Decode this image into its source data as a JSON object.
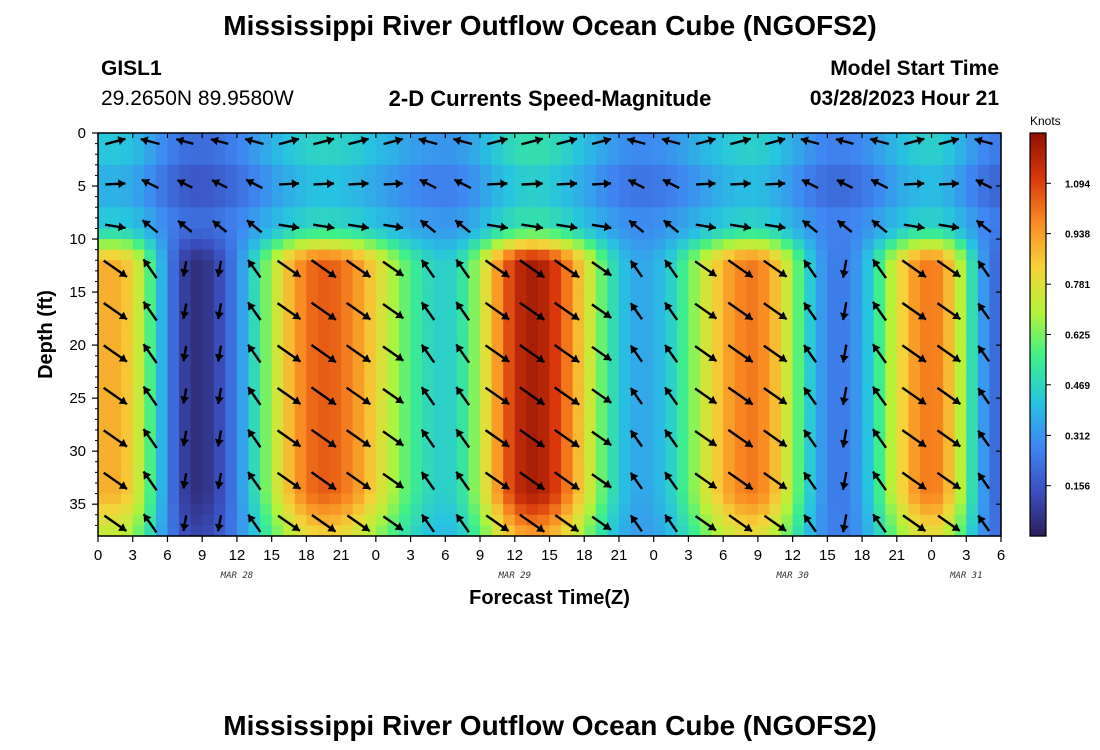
{
  "page": {
    "title": "Mississippi River Outflow Ocean Cube (NGOFS2)",
    "footer_title": "Mississippi River Outflow Ocean Cube (NGOFS2)",
    "station": "GISL1",
    "location": "29.2650N  89.9580W",
    "subtitle": "2-D Currents Speed-Magnitude",
    "model_start_label": "Model Start Time",
    "model_start_value": "03/28/2023 Hour 21"
  },
  "chart_data": {
    "type": "heatmap",
    "title": "2-D Currents Speed-Magnitude",
    "xlabel": "Forecast Time(Z)",
    "ylabel": "Depth (ft)",
    "colorbar_label": "Knots",
    "x_ticks": [
      "0",
      "3",
      "6",
      "9",
      "12",
      "15",
      "18",
      "21",
      "0",
      "3",
      "6",
      "9",
      "12",
      "15",
      "18",
      "21",
      "0",
      "3",
      "6",
      "9",
      "12",
      "15",
      "18",
      "21",
      "0",
      "3",
      "6"
    ],
    "x_hours": [
      0,
      3,
      6,
      9,
      12,
      15,
      18,
      21,
      24,
      27,
      30,
      33,
      36,
      39,
      42,
      45,
      48,
      51,
      54,
      57,
      60,
      63,
      66,
      69,
      72,
      75,
      78
    ],
    "date_labels": [
      {
        "text": "MAR 28",
        "hour": 12
      },
      {
        "text": "MAR 29",
        "hour": 36
      },
      {
        "text": "MAR 30",
        "hour": 60
      },
      {
        "text": "MAR 31",
        "hour": 75
      }
    ],
    "y_ticks": [
      0,
      5,
      10,
      15,
      20,
      25,
      30,
      35
    ],
    "ylim": [
      0,
      38
    ],
    "xlim": [
      0,
      78
    ],
    "colorbar_ticks": [
      "1.094",
      "0.938",
      "0.781",
      "0.625",
      "0.469",
      "0.312",
      "0.156"
    ],
    "colorbar_values": [
      1.094,
      0.938,
      0.781,
      0.625,
      0.469,
      0.312,
      0.156
    ],
    "colorbar_range": [
      0.0,
      1.25
    ],
    "colorscale": [
      "#2b1f5a",
      "#3b4fc0",
      "#3f86f2",
      "#27c4e0",
      "#3ef08a",
      "#b4f33a",
      "#f5d33a",
      "#f98b22",
      "#d8380c",
      "#8f1004"
    ],
    "speed_peaks": [
      {
        "hour": 1.5,
        "speed": 0.9
      },
      {
        "hour": 8.5,
        "speed": 0.05
      },
      {
        "hour": 19.5,
        "speed": 1.05
      },
      {
        "hour": 30.0,
        "speed": 0.45
      },
      {
        "hour": 37.5,
        "speed": 1.2
      },
      {
        "hour": 47.0,
        "speed": 0.35
      },
      {
        "hour": 56.5,
        "speed": 1.0
      },
      {
        "hour": 64.0,
        "speed": 0.25
      },
      {
        "hour": 72.0,
        "speed": 1.0
      },
      {
        "hour": 78.0,
        "speed": 0.2
      }
    ],
    "grid": false,
    "arrow_color": "#000000"
  }
}
